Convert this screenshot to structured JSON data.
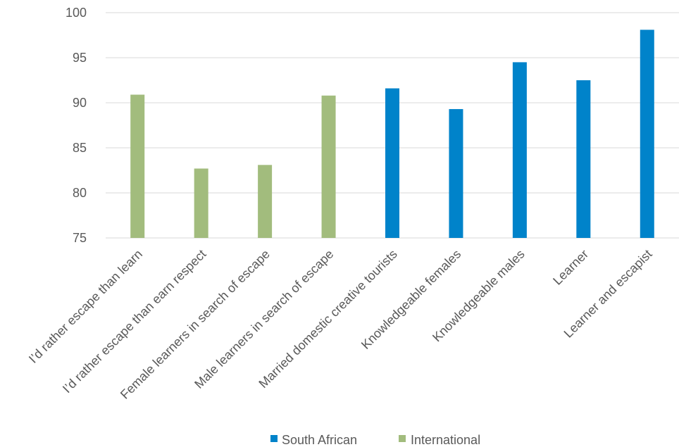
{
  "chart_data": {
    "type": "bar",
    "categories": [
      "I’d rather escape than learn",
      "I’d rather escape than earn respect",
      "Female learners in search of escape",
      "Male learners in search of escape",
      "Married domestic creative tourists",
      "Knowledgeable females",
      "Knowledgeable males",
      "Learner",
      "Learner and escapist"
    ],
    "values": [
      90.9,
      82.7,
      83.1,
      90.8,
      91.6,
      89.3,
      94.5,
      92.5,
      98.1
    ],
    "groups": [
      "International",
      "International",
      "International",
      "International",
      "South African",
      "South African",
      "South African",
      "South African",
      "South African"
    ],
    "series": [
      {
        "name": "South African",
        "color": "#0083CA"
      },
      {
        "name": "International",
        "color": "#A2BC7D"
      }
    ],
    "yticks": [
      75,
      80,
      85,
      90,
      95,
      100
    ],
    "ylim": [
      75,
      100
    ],
    "grid": true,
    "legend_position": "bottom",
    "title": "",
    "xlabel": "",
    "ylabel": ""
  }
}
